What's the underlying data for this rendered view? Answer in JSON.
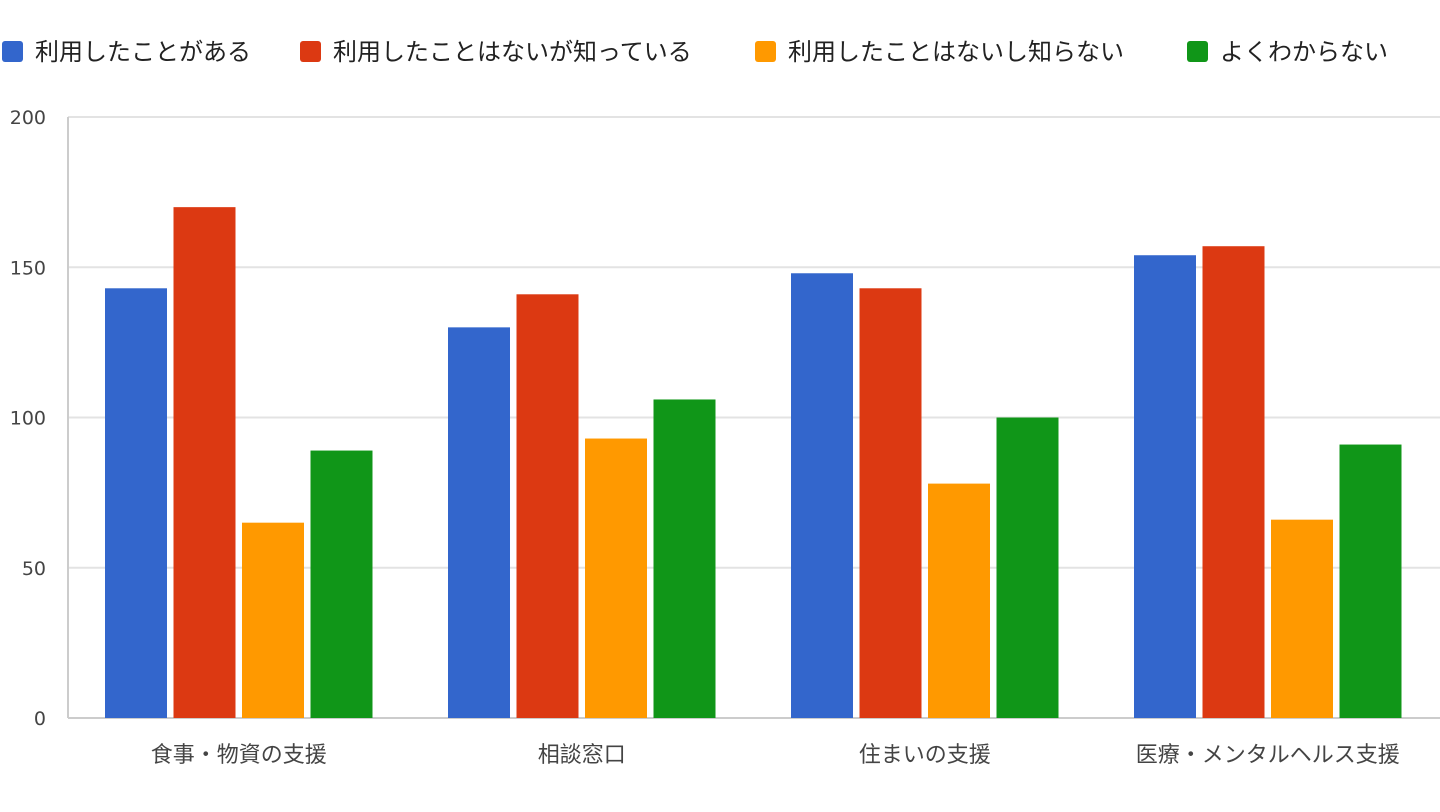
{
  "chart_data": {
    "type": "bar",
    "title": "",
    "xlabel": "",
    "ylabel": "",
    "ylim": [
      0,
      200
    ],
    "yticks": [
      0,
      50,
      100,
      150,
      200
    ],
    "grid": true,
    "legend_position": "top",
    "categories": [
      "食事・物資の支援",
      "相談窓口",
      "住まいの支援",
      "医療・メンタルヘルス支援"
    ],
    "series": [
      {
        "name": "利用したことがある",
        "color": "#3366cc",
        "values": [
          143,
          130,
          148,
          154
        ]
      },
      {
        "name": "利用したことはないが知っている",
        "color": "#dc3912",
        "values": [
          170,
          141,
          143,
          157
        ]
      },
      {
        "name": "利用したことはないし知らない",
        "color": "#ff9900",
        "values": [
          65,
          93,
          78,
          66
        ]
      },
      {
        "name": "よくわからない",
        "color": "#109618",
        "values": [
          89,
          106,
          100,
          91
        ]
      }
    ]
  }
}
